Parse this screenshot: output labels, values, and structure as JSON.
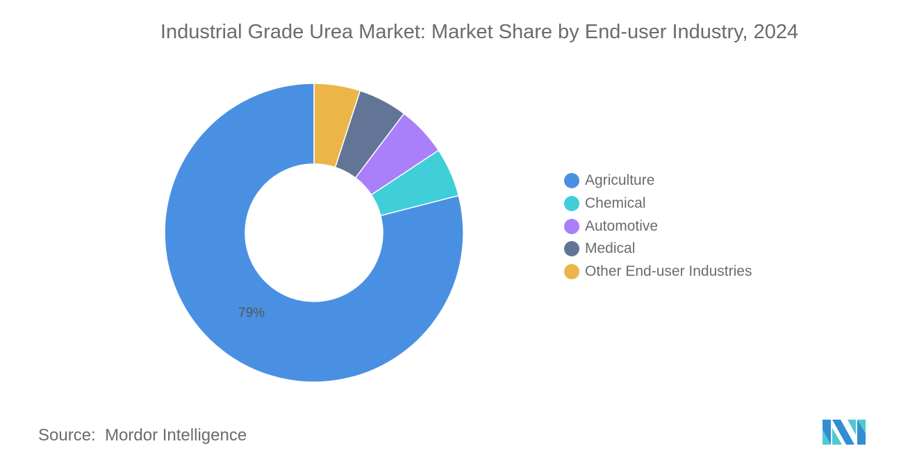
{
  "chart_data": {
    "type": "pie",
    "title": "Industrial Grade Urea Market: Market Share by End-user Industry, 2024",
    "donut": true,
    "legend_position": "right",
    "categories": [
      "Agriculture",
      "Chemical",
      "Automotive",
      "Medical",
      "Other End-user Industries"
    ],
    "values": [
      79,
      5.3,
      5.4,
      5.3,
      5
    ],
    "colors": [
      "#4a90e2",
      "#40cfd8",
      "#a97ffa",
      "#637596",
      "#ecb54a"
    ],
    "data_labels": [
      "79%",
      "",
      "",
      "",
      ""
    ]
  },
  "source": {
    "label": "Source:",
    "value": "Mordor Intelligence"
  },
  "logo": {
    "text": "Mordor Intelligence"
  }
}
